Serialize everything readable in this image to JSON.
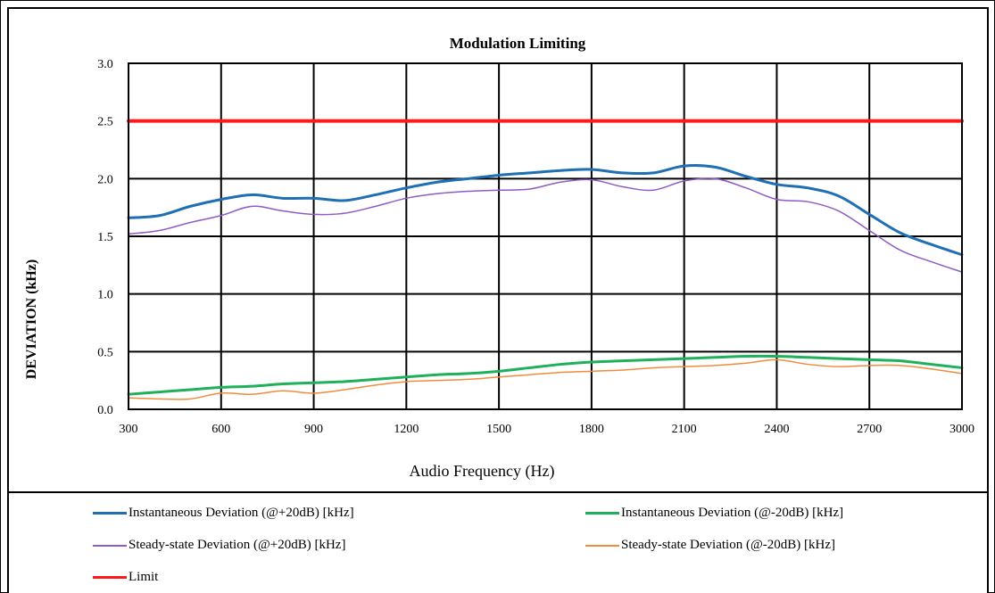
{
  "chart_data": {
    "type": "line",
    "title": "Modulation Limiting",
    "xlabel": "Audio Frequency (Hz)",
    "ylabel": "DEVIATION (kHz)",
    "xlim": [
      300,
      3000
    ],
    "ylim": [
      0.0,
      3.0
    ],
    "xticks": [
      "300",
      "600",
      "900",
      "1200",
      "1500",
      "1800",
      "2100",
      "2400",
      "2700",
      "3000"
    ],
    "yticks": [
      "0.0",
      "0.5",
      "1.0",
      "1.5",
      "2.0",
      "2.5",
      "3.0"
    ],
    "grid": true,
    "legend_position": "bottom",
    "series": [
      {
        "name": "Instantaneous Deviation (@+20dB) [kHz]",
        "color": "#1f6fb5",
        "width": 3,
        "x": [
          300,
          400,
          500,
          600,
          700,
          800,
          900,
          1000,
          1100,
          1200,
          1300,
          1400,
          1500,
          1600,
          1700,
          1800,
          1900,
          2000,
          2100,
          2200,
          2300,
          2400,
          2500,
          2600,
          2700,
          2800,
          2900,
          3000
        ],
        "y": [
          1.66,
          1.68,
          1.76,
          1.82,
          1.86,
          1.83,
          1.83,
          1.81,
          1.86,
          1.92,
          1.97,
          2.0,
          2.03,
          2.05,
          2.07,
          2.08,
          2.05,
          2.05,
          2.11,
          2.1,
          2.02,
          1.95,
          1.92,
          1.85,
          1.69,
          1.53,
          1.43,
          1.34
        ]
      },
      {
        "name": "Instantaneous Deviation (@-20dB) [kHz]",
        "color": "#1fb15a",
        "width": 3,
        "x": [
          300,
          400,
          500,
          600,
          700,
          800,
          900,
          1000,
          1100,
          1200,
          1300,
          1400,
          1500,
          1600,
          1700,
          1800,
          1900,
          2000,
          2100,
          2200,
          2300,
          2400,
          2500,
          2600,
          2700,
          2800,
          2900,
          3000
        ],
        "y": [
          0.13,
          0.15,
          0.17,
          0.19,
          0.2,
          0.22,
          0.23,
          0.24,
          0.26,
          0.28,
          0.3,
          0.31,
          0.33,
          0.36,
          0.39,
          0.41,
          0.42,
          0.43,
          0.44,
          0.45,
          0.46,
          0.46,
          0.45,
          0.44,
          0.43,
          0.42,
          0.39,
          0.36
        ]
      },
      {
        "name": "Steady-state Deviation (@+20dB) [kHz]",
        "color": "#8e5cc4",
        "width": 1.5,
        "x": [
          300,
          400,
          500,
          600,
          700,
          800,
          900,
          1000,
          1100,
          1200,
          1300,
          1400,
          1500,
          1600,
          1700,
          1800,
          1900,
          2000,
          2100,
          2200,
          2300,
          2400,
          2500,
          2600,
          2700,
          2800,
          2900,
          3000
        ],
        "y": [
          1.52,
          1.55,
          1.62,
          1.68,
          1.76,
          1.72,
          1.69,
          1.7,
          1.76,
          1.83,
          1.87,
          1.89,
          1.9,
          1.91,
          1.97,
          1.99,
          1.93,
          1.9,
          1.98,
          2.0,
          1.92,
          1.82,
          1.8,
          1.72,
          1.55,
          1.38,
          1.28,
          1.19
        ]
      },
      {
        "name": "Steady-state Deviation (@-20dB) [kHz]",
        "color": "#f08c3c",
        "width": 1.5,
        "x": [
          300,
          400,
          500,
          600,
          700,
          800,
          900,
          1000,
          1100,
          1200,
          1300,
          1400,
          1500,
          1600,
          1700,
          1800,
          1900,
          2000,
          2100,
          2200,
          2300,
          2400,
          2500,
          2600,
          2700,
          2800,
          2900,
          3000
        ],
        "y": [
          0.1,
          0.09,
          0.09,
          0.14,
          0.13,
          0.16,
          0.14,
          0.17,
          0.21,
          0.24,
          0.25,
          0.26,
          0.28,
          0.3,
          0.32,
          0.33,
          0.34,
          0.36,
          0.37,
          0.38,
          0.4,
          0.43,
          0.39,
          0.37,
          0.38,
          0.38,
          0.35,
          0.31
        ]
      },
      {
        "name": "Limit",
        "color": "#ff1a1a",
        "width": 4,
        "x": [
          300,
          3000
        ],
        "y": [
          2.5,
          2.5
        ]
      }
    ]
  }
}
